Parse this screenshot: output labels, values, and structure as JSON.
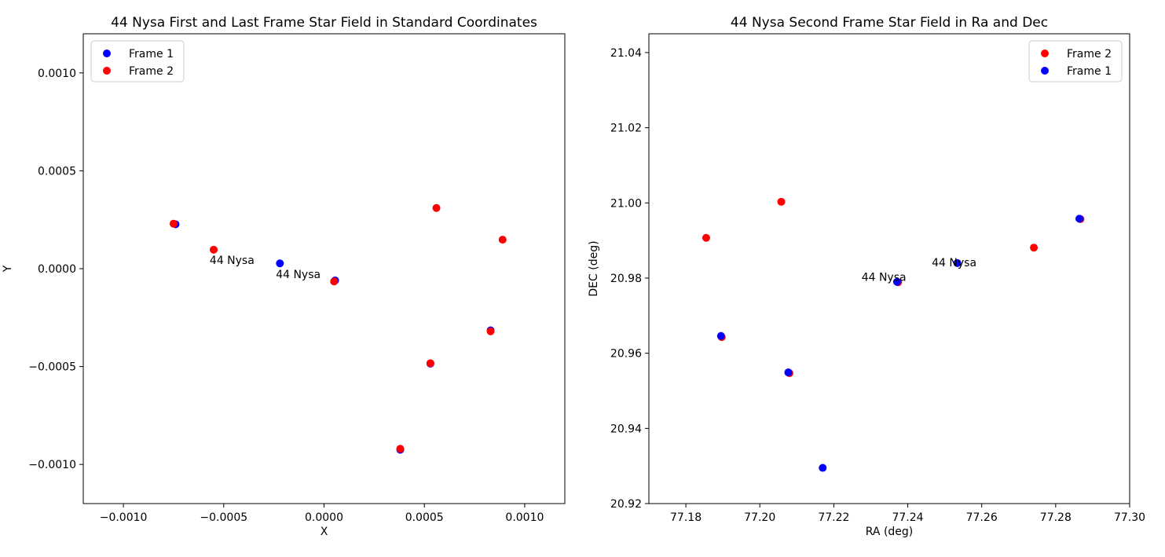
{
  "chart_data": [
    {
      "type": "scatter",
      "title": "44 Nysa First and Last Frame Star Field in Standard Coordinates",
      "xlabel": "X",
      "ylabel": "Y",
      "xlim": [
        -0.0012,
        0.0012
      ],
      "ylim": [
        -0.0012,
        0.0012
      ],
      "xticks": [
        -0.001,
        -0.0005,
        0.0,
        0.0005,
        0.001
      ],
      "xtick_labels": [
        "−0.0010",
        "−0.0005",
        "0.0000",
        "0.0005",
        "0.0010"
      ],
      "yticks": [
        0.001,
        0.0005,
        0.0,
        -0.0005,
        -0.001
      ],
      "ytick_labels": [
        "0.0010",
        "0.0005",
        "0.0000",
        "−0.0005",
        "−0.0010"
      ],
      "legend_position": "top-left",
      "series": [
        {
          "name": "Frame 1",
          "color": "#0000ff",
          "x": [
            -0.00074,
            -0.00022,
            5.5e-05,
            0.00083,
            0.00053,
            0.00038
          ],
          "y": [
            0.000227,
            2.7e-05,
            -6e-05,
            -0.000315,
            -0.000485,
            -0.000925
          ]
        },
        {
          "name": "Frame 2",
          "color": "#ff0000",
          "x": [
            -0.00075,
            -0.00055,
            5e-05,
            0.00056,
            0.00089,
            0.00083,
            0.00053,
            0.00038
          ],
          "y": [
            0.00023,
            9.7e-05,
            -6.5e-05,
            0.00031,
            0.000148,
            -0.00032,
            -0.000483,
            -0.00092
          ]
        }
      ],
      "annotations": [
        {
          "text": "44 Nysa",
          "x": -0.00057,
          "y": 2.5e-05
        },
        {
          "text": "44 Nysa",
          "x": -0.00024,
          "y": -4.8e-05
        }
      ]
    },
    {
      "type": "scatter",
      "title": "44 Nysa Second Frame Star Field in Ra and Dec",
      "xlabel": "RA (deg)",
      "ylabel": "DEC (deg)",
      "xlim": [
        77.17,
        77.3
      ],
      "ylim": [
        20.92,
        21.045
      ],
      "xticks": [
        77.18,
        77.2,
        77.22,
        77.24,
        77.26,
        77.28,
        77.3
      ],
      "xtick_labels": [
        "77.18",
        "77.20",
        "77.22",
        "77.24",
        "77.26",
        "77.28",
        "77.30"
      ],
      "yticks": [
        21.04,
        21.02,
        21.0,
        20.98,
        20.96,
        20.94,
        20.92
      ],
      "ytick_labels": [
        "21.04",
        "21.02",
        "21.00",
        "20.98",
        "20.96",
        "20.94",
        "20.92"
      ],
      "legend_position": "top-right",
      "series": [
        {
          "name": "Frame 2",
          "color": "#ff0000",
          "x": [
            77.1855,
            77.2058,
            77.2741,
            77.2867,
            77.2374,
            77.1897,
            77.208
          ],
          "y": [
            20.9907,
            21.0003,
            20.9881,
            20.9957,
            20.9789,
            20.9643,
            20.9547
          ]
        },
        {
          "name": "Frame 1",
          "color": "#0000ff",
          "x": [
            77.2864,
            77.2534,
            77.2371,
            77.1895,
            77.2077,
            77.217
          ],
          "y": [
            20.9958,
            20.984,
            20.979,
            20.9646,
            20.9549,
            20.9295
          ]
        }
      ],
      "annotations": [
        {
          "text": "44 Nysa",
          "x": 77.2275,
          "y": 20.9793
        },
        {
          "text": "44 Nysa",
          "x": 77.2465,
          "y": 20.9831
        }
      ]
    }
  ]
}
